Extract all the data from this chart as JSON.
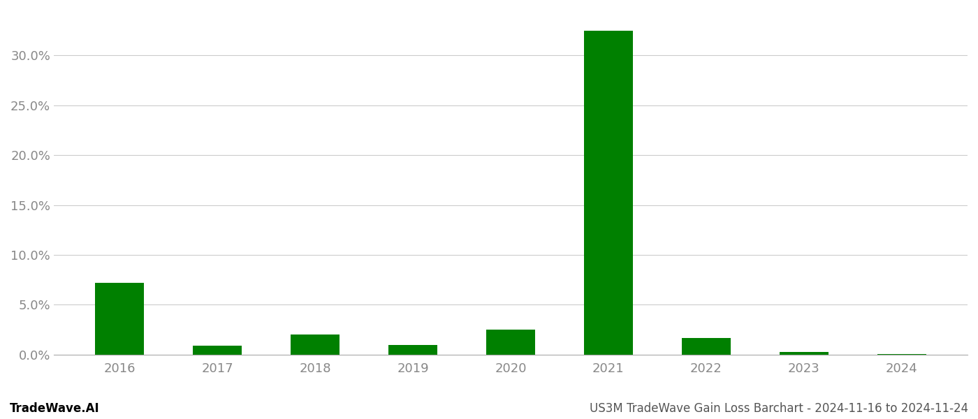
{
  "years": [
    "2016",
    "2017",
    "2018",
    "2019",
    "2020",
    "2021",
    "2022",
    "2023",
    "2024"
  ],
  "values": [
    0.072,
    0.009,
    0.02,
    0.01,
    0.025,
    0.325,
    0.017,
    0.003,
    0.0005
  ],
  "bar_color": "#008000",
  "background_color": "#ffffff",
  "grid_color": "#cccccc",
  "title": "US3M TradeWave Gain Loss Barchart - 2024-11-16 to 2024-11-24",
  "footer_left": "TradeWave.AI",
  "ylim": [
    0,
    0.345
  ],
  "yticks": [
    0.0,
    0.05,
    0.1,
    0.15,
    0.2,
    0.25,
    0.3
  ],
  "ytick_labels": [
    "0.0%",
    "5.0%",
    "10.0%",
    "15.0%",
    "20.0%",
    "25.0%",
    "30.0%"
  ],
  "bar_width": 0.5,
  "tick_fontsize": 13,
  "footer_fontsize": 12
}
